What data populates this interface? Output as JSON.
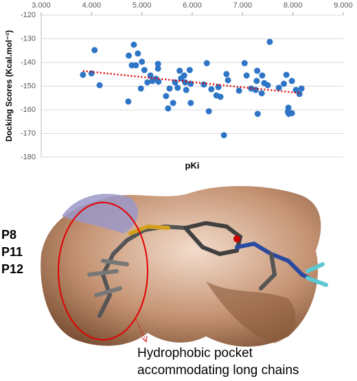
{
  "chart_data": {
    "type": "scatter",
    "y_label": "Docking Scores (Kcal.mol⁻¹)",
    "x_label": "pKi",
    "color": "#2e75c6",
    "x": [
      3.83,
      4.0,
      4.06,
      4.16,
      4.73,
      4.74,
      4.8,
      4.84,
      4.88,
      4.92,
      4.98,
      5.0,
      5.05,
      5.11,
      5.17,
      5.21,
      5.28,
      5.32,
      5.32,
      5.33,
      5.48,
      5.52,
      5.55,
      5.62,
      5.66,
      5.71,
      5.75,
      5.78,
      5.84,
      5.86,
      5.88,
      5.95,
      5.97,
      5.97,
      6.23,
      6.29,
      6.33,
      6.38,
      6.48,
      6.52,
      6.56,
      6.63,
      6.68,
      6.71,
      6.93,
      7.04,
      7.08,
      7.17,
      7.26,
      7.28,
      7.29,
      7.3,
      7.38,
      7.39,
      7.43,
      7.5,
      7.54,
      7.72,
      7.82,
      7.87,
      7.9,
      7.91,
      7.92,
      7.98,
      7.98,
      8.06,
      8.13,
      8.17
    ],
    "values": [
      -145.2,
      -144.6,
      -134.8,
      -149.6,
      -156.5,
      -137.1,
      -141.2,
      -132.5,
      -141.2,
      -136.2,
      -151,
      -139.7,
      -143.2,
      -148.4,
      -145.5,
      -147.8,
      -146.9,
      -140.6,
      -142.6,
      -148.1,
      -154.2,
      -159.4,
      -151,
      -157.1,
      -148.4,
      -150.7,
      -143.5,
      -146.7,
      -145.5,
      -148.4,
      -151.6,
      -143.2,
      -157.1,
      -149,
      -149.3,
      -140.3,
      -160.6,
      -151.3,
      -153.9,
      -150.4,
      -154.5,
      -170.7,
      -144.9,
      -147.5,
      -151.9,
      -140.3,
      -145.5,
      -151,
      -151.6,
      -147.8,
      -143.5,
      -161.7,
      -153,
      -145.5,
      -148.7,
      -149.6,
      -131.3,
      -150.7,
      -149,
      -145.2,
      -160.9,
      -159.1,
      -161.7,
      -147.8,
      -161.4,
      -151.6,
      -153.3,
      -151
    ],
    "trendline": {
      "x": [
        3.83,
        8.17
      ],
      "y": [
        -143.6,
        -153
      ],
      "color": "#e00000"
    },
    "xlim": [
      3,
      9
    ],
    "xticks": [
      {
        "value": 3,
        "label": "3.000"
      },
      {
        "value": 4,
        "label": "4.000"
      },
      {
        "value": 5,
        "label": "5.000"
      },
      {
        "value": 6,
        "label": "6.000"
      },
      {
        "value": 7,
        "label": "7.000"
      },
      {
        "value": 8,
        "label": "8.000"
      },
      {
        "value": 9,
        "label": "9.000"
      }
    ],
    "ylim": [
      -180,
      -120
    ],
    "yticks": [
      -120,
      -130,
      -140,
      -150,
      -160,
      -170,
      -180
    ],
    "grid": true
  },
  "figure": {
    "labels": [
      "P8",
      "P11",
      "P12"
    ],
    "annotation": [
      "Hydrophobic pocket",
      "accommodating long chains"
    ]
  }
}
